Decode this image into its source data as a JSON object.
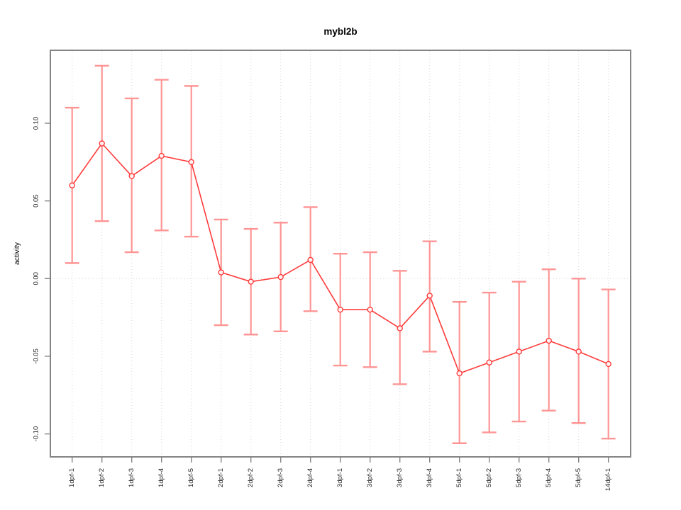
{
  "page": {
    "background_color": "#ffffff"
  },
  "chart_data": {
    "type": "line",
    "title": "mybl2b",
    "xlabel": "",
    "ylabel": "activity",
    "legend": "none",
    "grid": {
      "vertical_dotted_at_each_category": true,
      "horizontal_dotted_zero_line": true
    },
    "categories": [
      "1dpf-1",
      "1dpf-2",
      "1dpf-3",
      "1dpf-4",
      "1dpf-5",
      "2dpf-1",
      "2dpf-2",
      "2dpf-3",
      "2dpf-4",
      "3dpf-1",
      "3dpf-2",
      "3dpf-3",
      "3dpf-4",
      "5dpf-1",
      "5dpf-2",
      "5dpf-3",
      "5dpf-4",
      "5dpf-5",
      "14dpf-1"
    ],
    "series": [
      {
        "name": "activity",
        "marker": "open-circle",
        "values": [
          0.06,
          0.087,
          0.066,
          0.079,
          0.075,
          0.004,
          -0.002,
          0.001,
          0.012,
          -0.02,
          -0.02,
          -0.032,
          -0.011,
          -0.061,
          -0.054,
          -0.047,
          -0.04,
          -0.047,
          -0.055
        ],
        "error_upper": [
          0.11,
          0.137,
          0.116,
          0.128,
          0.124,
          0.038,
          0.032,
          0.036,
          0.046,
          0.016,
          0.017,
          0.005,
          0.024,
          -0.015,
          -0.009,
          -0.002,
          0.006,
          0.0,
          -0.007
        ],
        "error_lower": [
          0.01,
          0.037,
          0.017,
          0.031,
          0.027,
          -0.03,
          -0.036,
          -0.034,
          -0.021,
          -0.056,
          -0.057,
          -0.068,
          -0.047,
          -0.106,
          -0.099,
          -0.092,
          -0.085,
          -0.093,
          -0.103
        ]
      }
    ],
    "ylim": [
      -0.115,
      0.147
    ],
    "yticks": {
      "values": [
        -0.1,
        -0.05,
        0.0,
        0.05,
        0.1
      ],
      "labels": [
        "-0.10",
        "-0.05",
        "0.00",
        "0.05",
        "0.10"
      ]
    },
    "colors": {
      "series_line": "#ff3b3b",
      "marker": "#ff3b3b",
      "error_bar": "#ff9494",
      "grid_line": "#d7d7d7",
      "zero_line": "#d7d7d7",
      "frame": "#848484",
      "tick_text": "#1f1f1f",
      "title_text": "#000000"
    }
  }
}
